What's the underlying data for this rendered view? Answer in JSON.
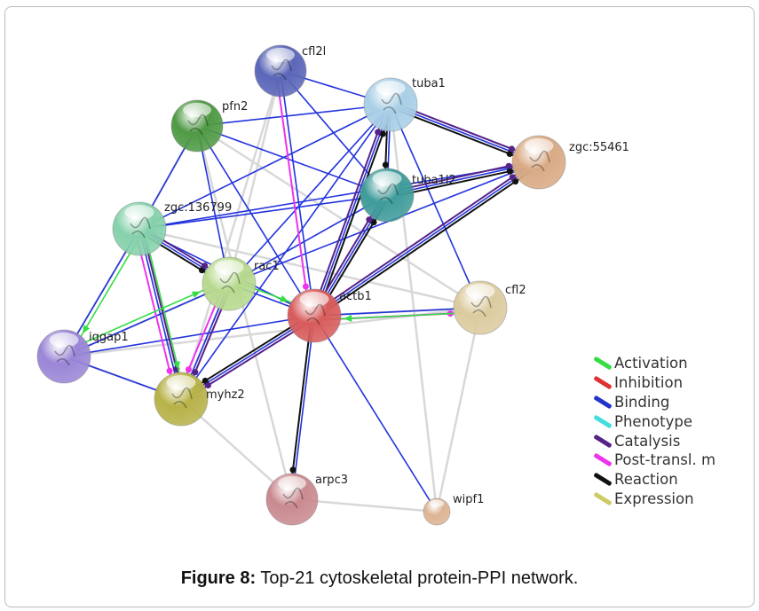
{
  "caption": {
    "label": "Figure 8:",
    "text": " Top-21 cytoskeletal protein-PPI network."
  },
  "legend": [
    {
      "label": "Activation",
      "color": "#33dd44"
    },
    {
      "label": "Inhibition",
      "color": "#dd3333"
    },
    {
      "label": "Binding",
      "color": "#2233cc"
    },
    {
      "label": "Phenotype",
      "color": "#44dddd"
    },
    {
      "label": "Catalysis",
      "color": "#552288"
    },
    {
      "label": "Post-transl. m",
      "color": "#ee33ee"
    },
    {
      "label": "Reaction",
      "color": "#111111"
    },
    {
      "label": "Expression",
      "color": "#cccc66"
    }
  ],
  "nodes": [
    {
      "id": "cfl2l",
      "label": "cfl2l",
      "color": "#5a66b8"
    },
    {
      "id": "tuba1",
      "label": "tuba1",
      "color": "#a8cfe6"
    },
    {
      "id": "pfn2",
      "label": "pfn2",
      "color": "#4f9a45"
    },
    {
      "id": "zgc55461",
      "label": "zgc:55461",
      "color": "#d9aa85"
    },
    {
      "id": "tuba1l2",
      "label": "tuba1l2",
      "color": "#3f9c9a"
    },
    {
      "id": "zgc136799",
      "label": "zgc:136799",
      "color": "#86d1ac"
    },
    {
      "id": "rac1",
      "label": "rac1",
      "color": "#b7d98e"
    },
    {
      "id": "actb1",
      "label": "actb1",
      "color": "#d85c5c"
    },
    {
      "id": "cfl2",
      "label": "cfl2",
      "color": "#dccb9f"
    },
    {
      "id": "iqgap1",
      "label": "iqgap1",
      "color": "#9a86d6"
    },
    {
      "id": "myhz2",
      "label": "myhz2",
      "color": "#b7b248"
    },
    {
      "id": "arpc3",
      "label": "arpc3",
      "color": "#c98a8f"
    },
    {
      "id": "wipf1",
      "label": "wipf1",
      "color": "#ddb494"
    }
  ],
  "edges": {
    "textmining": [
      [
        "pfn2",
        "arpc3"
      ],
      [
        "pfn2",
        "cfl2"
      ],
      [
        "cfl2l",
        "rac1"
      ],
      [
        "cfl2l",
        "myhz2"
      ],
      [
        "actb1",
        "cfl2"
      ],
      [
        "zgc136799",
        "cfl2"
      ],
      [
        "iqgap1",
        "cfl2"
      ],
      [
        "myhz2",
        "arpc3"
      ],
      [
        "arpc3",
        "wipf1"
      ],
      [
        "cfl2",
        "wipf1"
      ],
      [
        "tuba1",
        "wipf1"
      ],
      [
        "pfn2",
        "zgc136799"
      ],
      [
        "iqgap1",
        "myhz2"
      ],
      [
        "iqgap1",
        "rac1"
      ],
      [
        "zgc136799",
        "iqgap1"
      ],
      [
        "rac1",
        "myhz2"
      ]
    ],
    "binding": [
      [
        "cfl2l",
        "tuba1"
      ],
      [
        "cfl2l",
        "actb1"
      ],
      [
        "cfl2l",
        "tuba1l2"
      ],
      [
        "pfn2",
        "tuba1"
      ],
      [
        "pfn2",
        "zgc136799"
      ],
      [
        "pfn2",
        "tuba1l2"
      ],
      [
        "pfn2",
        "actb1"
      ],
      [
        "pfn2",
        "rac1"
      ],
      [
        "tuba1",
        "zgc55461"
      ],
      [
        "tuba1",
        "tuba1l2"
      ],
      [
        "tuba1",
        "actb1"
      ],
      [
        "tuba1",
        "rac1"
      ],
      [
        "tuba1",
        "zgc136799"
      ],
      [
        "tuba1",
        "myhz2"
      ],
      [
        "tuba1",
        "cfl2"
      ],
      [
        "tuba1l2",
        "zgc55461"
      ],
      [
        "tuba1l2",
        "zgc136799"
      ],
      [
        "tuba1l2",
        "actb1"
      ],
      [
        "tuba1l2",
        "rac1"
      ],
      [
        "zgc55461",
        "actb1"
      ],
      [
        "zgc55461",
        "zgc136799"
      ],
      [
        "zgc55461",
        "rac1"
      ],
      [
        "zgc136799",
        "rac1"
      ],
      [
        "zgc136799",
        "iqgap1"
      ],
      [
        "zgc136799",
        "myhz2"
      ],
      [
        "zgc136799",
        "actb1"
      ],
      [
        "rac1",
        "actb1"
      ],
      [
        "rac1",
        "iqgap1"
      ],
      [
        "rac1",
        "myhz2"
      ],
      [
        "actb1",
        "cfl2"
      ],
      [
        "actb1",
        "iqgap1"
      ],
      [
        "actb1",
        "myhz2"
      ],
      [
        "actb1",
        "arpc3"
      ],
      [
        "actb1",
        "wipf1"
      ],
      [
        "iqgap1",
        "myhz2"
      ]
    ],
    "reaction": [
      [
        "tuba1",
        "zgc55461"
      ],
      [
        "tuba1",
        "tuba1l2"
      ],
      [
        "tuba1l2",
        "zgc55461"
      ],
      [
        "actb1",
        "tuba1"
      ],
      [
        "actb1",
        "tuba1l2"
      ],
      [
        "actb1",
        "zgc55461"
      ],
      [
        "zgc136799",
        "rac1"
      ],
      [
        "actb1",
        "arpc3"
      ],
      [
        "actb1",
        "myhz2"
      ]
    ],
    "catalysis": [
      [
        "tuba1",
        "zgc55461"
      ],
      [
        "tuba1l2",
        "zgc55461"
      ],
      [
        "actb1",
        "tuba1"
      ],
      [
        "actb1",
        "tuba1l2"
      ],
      [
        "actb1",
        "zgc55461"
      ],
      [
        "zgc136799",
        "rac1"
      ],
      [
        "zgc136799",
        "myhz2"
      ],
      [
        "rac1",
        "myhz2"
      ],
      [
        "actb1",
        "myhz2"
      ]
    ],
    "posttransl": [
      [
        "cfl2l",
        "actb1"
      ],
      [
        "actb1",
        "cfl2"
      ],
      [
        "zgc136799",
        "myhz2"
      ],
      [
        "rac1",
        "myhz2"
      ]
    ],
    "activation": [
      [
        "rac1",
        "actb1"
      ],
      [
        "zgc136799",
        "iqgap1"
      ],
      [
        "iqgap1",
        "rac1"
      ],
      [
        "cfl2",
        "actb1"
      ],
      [
        "zgc136799",
        "myhz2"
      ]
    ]
  }
}
